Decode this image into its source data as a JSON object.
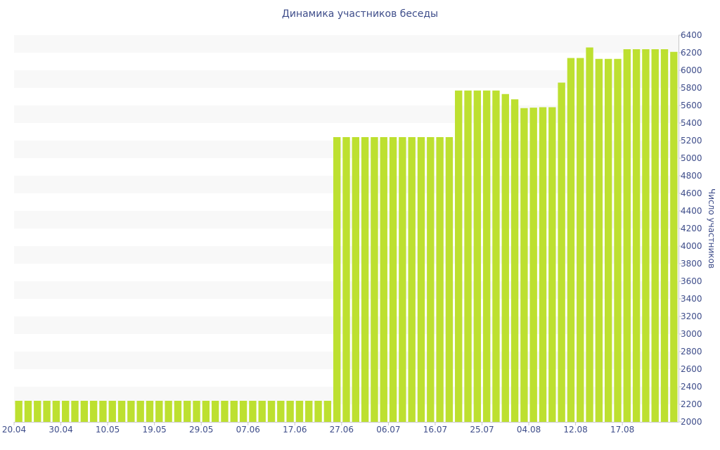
{
  "chart_data": {
    "type": "bar",
    "title": "Динамика участников беседы",
    "ylabel": "Число участников",
    "xlabel": "",
    "ylim": [
      2000,
      6400
    ],
    "y_ticks": [
      2000,
      2200,
      2400,
      2600,
      2800,
      3000,
      3200,
      3400,
      3600,
      3800,
      4000,
      4200,
      4400,
      4600,
      4800,
      5000,
      5200,
      5400,
      5600,
      5800,
      6000,
      6200,
      6400
    ],
    "x_tick_labels": [
      "20.04",
      "30.04",
      "10.05",
      "19.05",
      "29.05",
      "07.06",
      "17.06",
      "27.06",
      "06.07",
      "16.07",
      "25.07",
      "04.08",
      "12.08",
      "17.08"
    ],
    "x_tick_positions": [
      0,
      5,
      10,
      15,
      20,
      25,
      30,
      35,
      40,
      45,
      50,
      55,
      60,
      65
    ],
    "grid": "horizontal alternating bands",
    "y_axis_position": "right",
    "colors": {
      "bar": "#bde030",
      "band": "#f8f8f8",
      "text": "#3e4d8a",
      "axis": "#c8c8c8"
    },
    "values": [
      2240,
      2240,
      2240,
      2240,
      2240,
      2240,
      2240,
      2240,
      2240,
      2240,
      2240,
      2240,
      2240,
      2240,
      2240,
      2240,
      2240,
      2240,
      2240,
      2240,
      2240,
      2240,
      2240,
      2240,
      2240,
      2240,
      2240,
      2240,
      2240,
      2240,
      2240,
      2240,
      2240,
      2240,
      5240,
      5240,
      5240,
      5240,
      5240,
      5240,
      5240,
      5240,
      5240,
      5240,
      5240,
      5240,
      5240,
      5770,
      5770,
      5770,
      5770,
      5770,
      5730,
      5670,
      5570,
      5575,
      5580,
      5580,
      5860,
      6140,
      6140,
      6260,
      6130,
      6130,
      6130,
      6240,
      6240,
      6240,
      6240,
      6240,
      6210
    ]
  }
}
